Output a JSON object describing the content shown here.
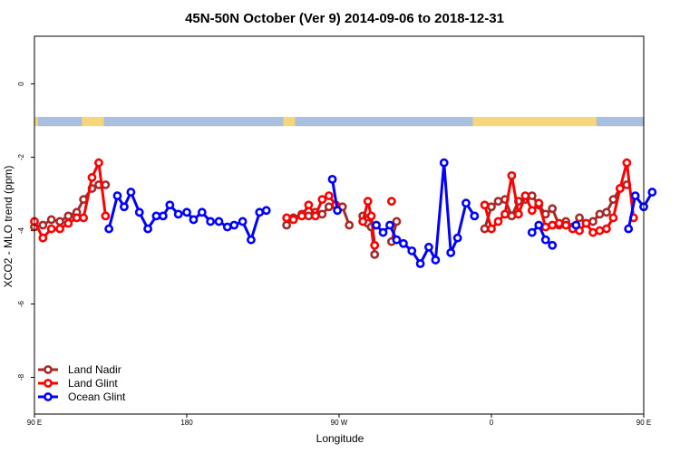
{
  "chart_data": {
    "type": "line",
    "title": "45N-50N October (Ver 9)   2014-09-06 to 2018-12-31",
    "xlabel": "Longitude",
    "ylabel": "XCO2 - MLO trend (ppm)",
    "xlim": [
      90,
      450
    ],
    "ylim": [
      -9,
      1.3
    ],
    "x_ticks": [
      {
        "value": 90,
        "label": "90 E"
      },
      {
        "value": 180,
        "label": "180"
      },
      {
        "value": 270,
        "label": "90 W"
      },
      {
        "value": 360,
        "label": "0"
      },
      {
        "value": 450,
        "label": "90 E"
      }
    ],
    "y_ticks": [
      {
        "value": 0,
        "label": "0"
      },
      {
        "value": -2,
        "label": "-2"
      },
      {
        "value": -4,
        "label": "-4"
      },
      {
        "value": -6,
        "label": "-6"
      },
      {
        "value": -8,
        "label": "-8"
      }
    ],
    "legend_position": "bottom-left",
    "land_mask_band": {
      "y_top": -0.9,
      "y_bottom": -1.15,
      "land_color": "#f7d57a",
      "ocean_color": "#a9bfdf"
    },
    "series": [
      {
        "name": "Land Nadir",
        "color": "#a52a2a",
        "points": [
          [
            90,
            -3.9
          ],
          [
            95,
            -3.85
          ],
          [
            100,
            -3.7
          ],
          [
            105,
            -3.75
          ],
          [
            110,
            -3.6
          ],
          [
            115,
            -3.5
          ],
          [
            119,
            -3.15
          ],
          [
            124,
            -2.85
          ],
          [
            128,
            -2.75
          ],
          [
            132,
            -2.75
          ],
          [
            239,
            -3.85
          ],
          [
            243,
            -3.65
          ],
          [
            248,
            -3.55
          ],
          [
            252,
            -3.6
          ],
          [
            256,
            -3.5
          ],
          [
            260,
            -3.55
          ],
          [
            264,
            -3.35
          ],
          [
            268,
            -3.3
          ],
          [
            272,
            -3.35
          ],
          [
            276,
            -3.85
          ],
          [
            284,
            -3.6
          ],
          [
            287,
            -3.8
          ],
          [
            289,
            -3.9
          ],
          [
            291,
            -4.65
          ],
          [
            301,
            -4.3
          ],
          [
            304,
            -3.75
          ],
          [
            356,
            -3.95
          ],
          [
            360,
            -3.35
          ],
          [
            364,
            -3.2
          ],
          [
            368,
            -3.15
          ],
          [
            372,
            -3.6
          ],
          [
            376,
            -3.2
          ],
          [
            380,
            -3.15
          ],
          [
            384,
            -3.05
          ],
          [
            388,
            -3.3
          ],
          [
            392,
            -3.55
          ],
          [
            396,
            -3.4
          ],
          [
            400,
            -3.85
          ],
          [
            404,
            -3.75
          ],
          [
            408,
            -3.9
          ],
          [
            412,
            -3.65
          ],
          [
            416,
            -3.8
          ],
          [
            420,
            -3.75
          ],
          [
            424,
            -3.55
          ],
          [
            428,
            -3.5
          ],
          [
            432,
            -3.15
          ],
          [
            436,
            -2.85
          ],
          [
            440,
            -2.75
          ]
        ]
      },
      {
        "name": "Land Glint",
        "color": "#ff0000",
        "points": [
          [
            90,
            -3.75
          ],
          [
            95,
            -4.2
          ],
          [
            100,
            -3.95
          ],
          [
            105,
            -3.95
          ],
          [
            110,
            -3.8
          ],
          [
            115,
            -3.65
          ],
          [
            119,
            -3.65
          ],
          [
            124,
            -2.55
          ],
          [
            128,
            -2.15
          ],
          [
            132,
            -3.6
          ],
          [
            239,
            -3.65
          ],
          [
            243,
            -3.7
          ],
          [
            248,
            -3.6
          ],
          [
            252,
            -3.3
          ],
          [
            256,
            -3.6
          ],
          [
            260,
            -3.15
          ],
          [
            264,
            -3.05
          ],
          [
            268,
            -3.3
          ],
          [
            284,
            -3.75
          ],
          [
            287,
            -3.2
          ],
          [
            289,
            -3.6
          ],
          [
            291,
            -4.4
          ],
          [
            301,
            -3.2
          ],
          [
            356,
            -3.3
          ],
          [
            360,
            -3.95
          ],
          [
            364,
            -3.75
          ],
          [
            368,
            -3.55
          ],
          [
            372,
            -2.5
          ],
          [
            376,
            -3.55
          ],
          [
            380,
            -3.05
          ],
          [
            384,
            -3.45
          ],
          [
            388,
            -3.25
          ],
          [
            392,
            -3.9
          ],
          [
            396,
            -3.85
          ],
          [
            400,
            -3.8
          ],
          [
            404,
            -3.85
          ],
          [
            408,
            -3.95
          ],
          [
            412,
            -4.0
          ],
          [
            416,
            -3.8
          ],
          [
            420,
            -4.05
          ],
          [
            424,
            -4.0
          ],
          [
            428,
            -3.95
          ],
          [
            432,
            -3.65
          ],
          [
            436,
            -2.85
          ],
          [
            440,
            -2.15
          ],
          [
            444,
            -3.65
          ]
        ]
      },
      {
        "name": "Ocean Glint",
        "color": "#0000ff",
        "points": [
          [
            134,
            -3.95
          ],
          [
            139,
            -3.05
          ],
          [
            143,
            -3.35
          ],
          [
            147,
            -2.95
          ],
          [
            152,
            -3.5
          ],
          [
            157,
            -3.95
          ],
          [
            162,
            -3.6
          ],
          [
            166,
            -3.6
          ],
          [
            170,
            -3.3
          ],
          [
            175,
            -3.55
          ],
          [
            180,
            -3.5
          ],
          [
            184,
            -3.7
          ],
          [
            189,
            -3.5
          ],
          [
            194,
            -3.75
          ],
          [
            199,
            -3.75
          ],
          [
            204,
            -3.9
          ],
          [
            208,
            -3.85
          ],
          [
            213,
            -3.75
          ],
          [
            218,
            -4.25
          ],
          [
            223,
            -3.5
          ],
          [
            227,
            -3.45
          ],
          [
            266,
            -2.6
          ],
          [
            269,
            -3.45
          ],
          [
            292,
            -3.85
          ],
          [
            296,
            -4.05
          ],
          [
            300,
            -3.85
          ],
          [
            304,
            -4.25
          ],
          [
            308,
            -4.35
          ],
          [
            313,
            -4.55
          ],
          [
            318,
            -4.9
          ],
          [
            323,
            -4.45
          ],
          [
            327,
            -4.8
          ],
          [
            332,
            -2.15
          ],
          [
            336,
            -4.6
          ],
          [
            340,
            -4.2
          ],
          [
            345,
            -3.25
          ],
          [
            350,
            -3.6
          ],
          [
            384,
            -4.05
          ],
          [
            388,
            -3.85
          ],
          [
            392,
            -4.25
          ],
          [
            396,
            -4.4
          ],
          [
            410,
            -3.85
          ],
          [
            441,
            -3.95
          ],
          [
            445,
            -3.05
          ],
          [
            450,
            -3.35
          ],
          [
            455,
            -2.95
          ]
        ]
      }
    ]
  }
}
